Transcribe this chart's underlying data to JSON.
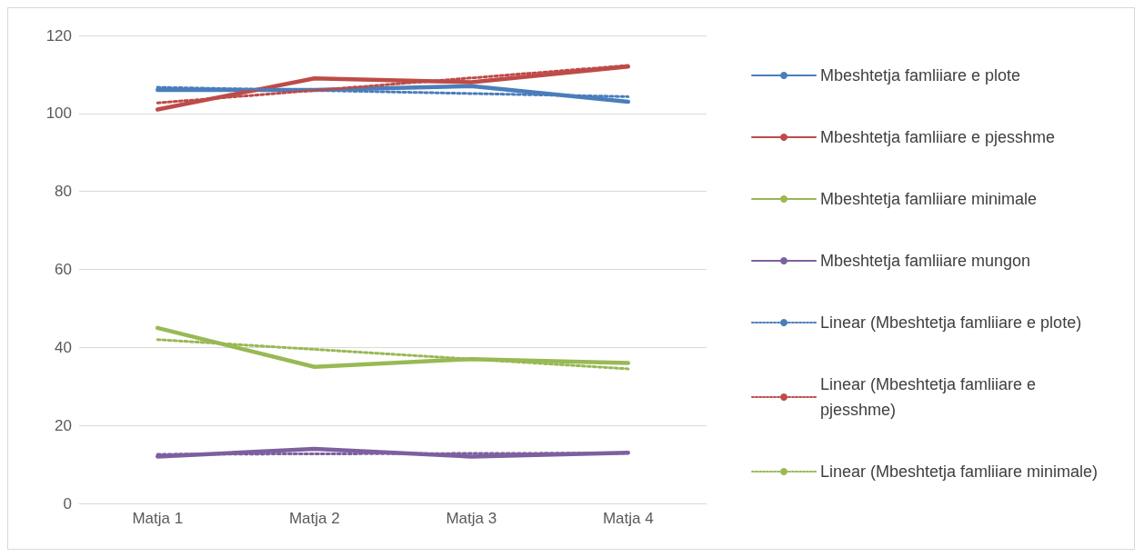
{
  "chart_data": {
    "type": "line",
    "categories": [
      "Matja 1",
      "Matja 2",
      "Matja 3",
      "Matja 4"
    ],
    "ylim": [
      0,
      120
    ],
    "yticks": [
      0,
      20,
      40,
      60,
      80,
      100,
      120
    ],
    "grid": "y",
    "legend": "right",
    "marker": "none",
    "series": [
      {
        "name": "Mbeshtetja famliiare e plote",
        "color": "#4a7ebb",
        "values": [
          106,
          106,
          107,
          103
        ],
        "line_style": "solid"
      },
      {
        "name": "Mbeshtetja famliiare e pjesshme",
        "color": "#be4b48",
        "values": [
          101,
          109,
          108,
          112
        ],
        "line_style": "solid"
      },
      {
        "name": "Mbeshtetja famliiare minimale",
        "color": "#98b954",
        "values": [
          45,
          35,
          37,
          36
        ],
        "line_style": "solid"
      },
      {
        "name": "Mbeshtetja famliiare mungon",
        "color": "#7d60a0",
        "values": [
          12,
          14,
          12,
          13
        ],
        "line_style": "solid"
      },
      {
        "name": "Linear (Mbeshtetja famliiare e plote)",
        "color": "#4a7ebb",
        "values": [
          106.7,
          105.9,
          105.1,
          104.3
        ],
        "line_style": "dotted"
      },
      {
        "name": "Linear (Mbeshtetja famliiare e pjesshme)",
        "color": "#be4b48",
        "values": [
          102.7,
          105.9,
          109.1,
          112.3
        ],
        "line_style": "dotted"
      },
      {
        "name": "Linear (Mbeshtetja famliiare minimale)",
        "color": "#98b954",
        "values": [
          42.0,
          39.5,
          37.0,
          34.5
        ],
        "line_style": "dotted"
      },
      {
        "color": "#7d60a0",
        "values": [
          12.6,
          12.7,
          12.8,
          12.9
        ],
        "line_style": "dotted"
      }
    ]
  }
}
